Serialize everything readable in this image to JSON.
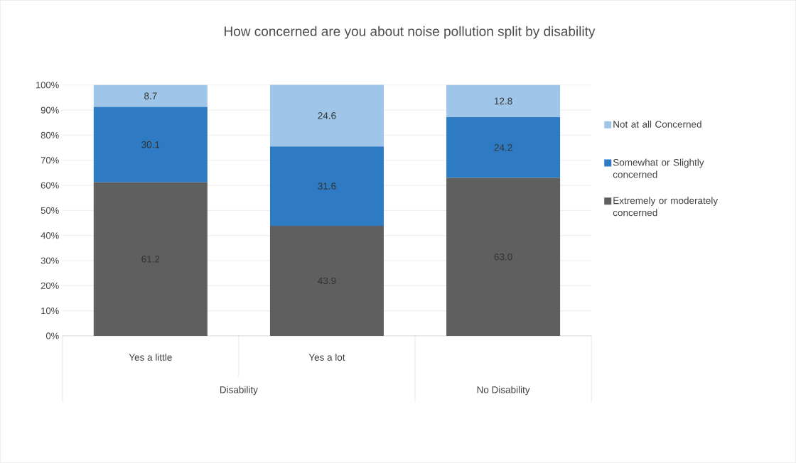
{
  "chart_data": {
    "type": "bar",
    "stacked": true,
    "title": "How concerned are you about noise pollution split by disability",
    "categories": [
      "Yes a little",
      "Yes a lot",
      null
    ],
    "series": [
      {
        "name": "Extremely or moderately concerned",
        "color": "#5f5f5f",
        "values": [
          61.2,
          43.9,
          63.0
        ],
        "value_labels": [
          "61.2",
          "43.9",
          "63.0"
        ]
      },
      {
        "name": "Somewhat or Slightly concerned",
        "color": "#2e7bc4",
        "values": [
          30.1,
          31.6,
          24.2
        ],
        "value_labels": [
          "30.1",
          "31.6",
          "24.2"
        ]
      },
      {
        "name": "Not at all Concerned",
        "color": "#9fc5e8",
        "values": [
          8.7,
          24.6,
          12.8
        ],
        "value_labels": [
          "8.7",
          "24.6",
          "12.8"
        ]
      }
    ],
    "ylim": [
      0,
      100
    ],
    "yticks": [
      {
        "value": 0,
        "label": "0%"
      },
      {
        "value": 10,
        "label": "10%"
      },
      {
        "value": 20,
        "label": "20%"
      },
      {
        "value": 30,
        "label": "30%"
      },
      {
        "value": 40,
        "label": "40%"
      },
      {
        "value": 50,
        "label": "50%"
      },
      {
        "value": 60,
        "label": "60%"
      },
      {
        "value": 70,
        "label": "70%"
      },
      {
        "value": 80,
        "label": "80%"
      },
      {
        "value": 90,
        "label": "90%"
      },
      {
        "value": 100,
        "label": "100%"
      }
    ],
    "grid": "y",
    "legend": "right",
    "annotations": [
      "Disability",
      "No Disability"
    ]
  }
}
